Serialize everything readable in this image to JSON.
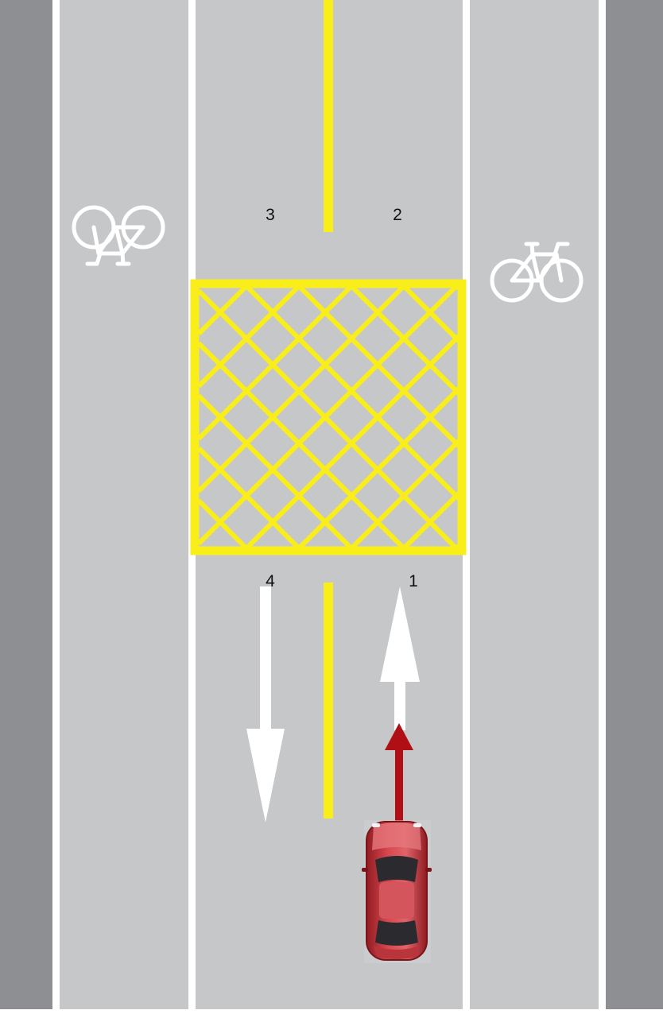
{
  "diagram": {
    "labels": {
      "n1": "1",
      "n2": "2",
      "n3": "3",
      "n4": "4"
    },
    "icons": {
      "left_lane": "bicycle-icon",
      "right_lane": "bicycle-icon",
      "vehicle": "car-icon",
      "vehicle_path": "arrow-up-icon"
    },
    "colors": {
      "road": "#c6c7c9",
      "verge": "#8e8f93",
      "white_line": "#ffffff",
      "yellow_line": "#f9ee1a",
      "car_body": "#c8333b",
      "car_arrow": "#b01015"
    }
  }
}
